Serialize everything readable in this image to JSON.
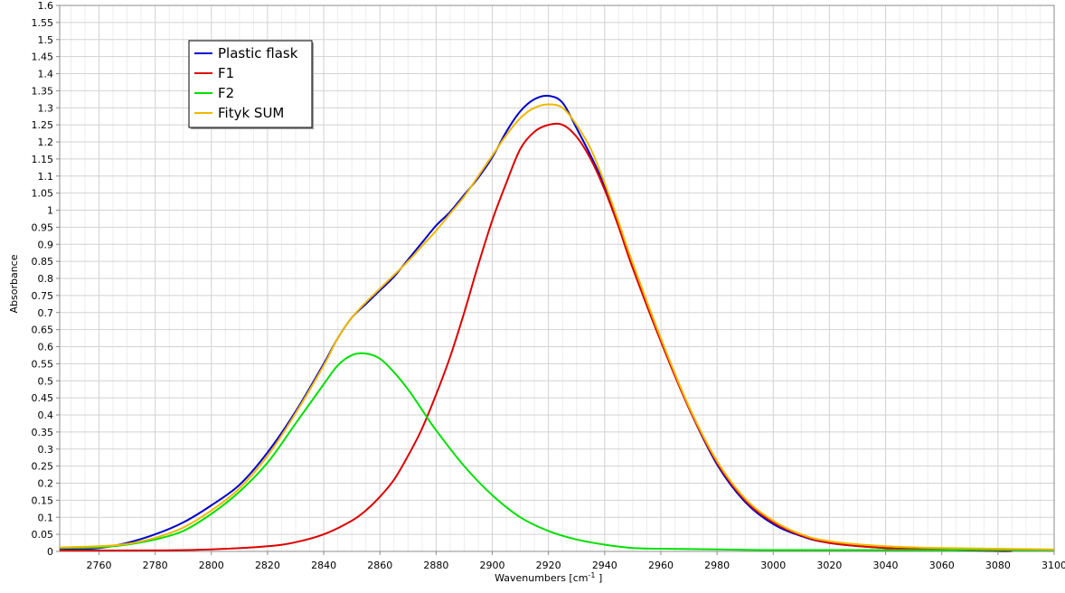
{
  "chart_data": {
    "type": "line",
    "xlabel_prefix": "Wavenumbers [cm",
    "xlabel_sup": "-1",
    "xlabel_suffix": " ]",
    "ylabel": "Absorbance",
    "xlim": [
      2746,
      3100
    ],
    "ylim": [
      0,
      1.6
    ],
    "x_ticks": [
      2760,
      2780,
      2800,
      2820,
      2840,
      2860,
      2880,
      2900,
      2920,
      2940,
      2960,
      2980,
      3000,
      3020,
      3040,
      3060,
      3080,
      3100
    ],
    "y_ticks": [
      "0",
      "0.05",
      "0.1",
      "0.15",
      "0.2",
      "0.25",
      "0.3",
      "0.35",
      "0.4",
      "0.45",
      "0.5",
      "0.55",
      "0.6",
      "0.65",
      "0.7",
      "0.75",
      "0.8",
      "0.85",
      "0.9",
      "0.95",
      "1",
      "1.05",
      "1.1",
      "1.15",
      "1.2",
      "1.25",
      "1.3",
      "1.35",
      "1.4",
      "1.45",
      "1.5",
      "1.55",
      "1.6"
    ],
    "grid": true,
    "legend_position": "top-left",
    "series": [
      {
        "name": "Plastic flask",
        "color": "#0000cc",
        "x": [
          2746,
          2760,
          2770,
          2780,
          2790,
          2800,
          2810,
          2820,
          2830,
          2840,
          2845,
          2850,
          2855,
          2860,
          2865,
          2870,
          2875,
          2880,
          2885,
          2890,
          2895,
          2900,
          2905,
          2910,
          2915,
          2920,
          2925,
          2930,
          2935,
          2940,
          2945,
          2950,
          2960,
          2970,
          2980,
          2990,
          3000,
          3010,
          3020,
          3040,
          3060,
          3080,
          3085
        ],
        "y": [
          0.005,
          0.01,
          0.025,
          0.05,
          0.085,
          0.135,
          0.195,
          0.29,
          0.41,
          0.55,
          0.625,
          0.685,
          0.725,
          0.765,
          0.805,
          0.855,
          0.905,
          0.955,
          0.995,
          1.045,
          1.095,
          1.155,
          1.23,
          1.29,
          1.325,
          1.335,
          1.315,
          1.24,
          1.16,
          1.07,
          0.955,
          0.84,
          0.62,
          0.42,
          0.255,
          0.145,
          0.08,
          0.045,
          0.025,
          0.01,
          0.005,
          0.001,
          0.001
        ]
      },
      {
        "name": "F1",
        "color": "#dd0000",
        "x": [
          2746,
          2780,
          2800,
          2820,
          2830,
          2840,
          2850,
          2855,
          2860,
          2865,
          2870,
          2875,
          2880,
          2885,
          2890,
          2895,
          2900,
          2905,
          2910,
          2915,
          2920,
          2925,
          2930,
          2935,
          2940,
          2945,
          2950,
          2960,
          2970,
          2980,
          2990,
          3000,
          3010,
          3020,
          3040,
          3060,
          3080,
          3085
        ],
        "y": [
          0.003,
          0.003,
          0.006,
          0.015,
          0.027,
          0.05,
          0.09,
          0.12,
          0.16,
          0.21,
          0.28,
          0.36,
          0.46,
          0.57,
          0.7,
          0.84,
          0.97,
          1.08,
          1.18,
          1.23,
          1.25,
          1.25,
          1.215,
          1.15,
          1.06,
          0.95,
          0.83,
          0.615,
          0.42,
          0.26,
          0.15,
          0.085,
          0.047,
          0.025,
          0.01,
          0.005,
          0.002,
          0.002
        ]
      },
      {
        "name": "F2",
        "color": "#00e000",
        "x": [
          2746,
          2760,
          2770,
          2780,
          2790,
          2800,
          2810,
          2820,
          2830,
          2840,
          2845,
          2850,
          2855,
          2860,
          2865,
          2870,
          2875,
          2880,
          2890,
          2900,
          2910,
          2920,
          2930,
          2940,
          2950,
          2960,
          2980,
          3000,
          3040,
          3100
        ],
        "y": [
          0.01,
          0.012,
          0.02,
          0.035,
          0.06,
          0.11,
          0.175,
          0.26,
          0.375,
          0.49,
          0.545,
          0.575,
          0.58,
          0.565,
          0.525,
          0.475,
          0.415,
          0.355,
          0.25,
          0.165,
          0.1,
          0.06,
          0.035,
          0.02,
          0.01,
          0.008,
          0.006,
          0.004,
          0.004,
          0.004
        ]
      },
      {
        "name": "Fityk SUM",
        "color": "#f0b800",
        "x": [
          2746,
          2760,
          2770,
          2780,
          2790,
          2800,
          2810,
          2820,
          2830,
          2840,
          2845,
          2850,
          2855,
          2860,
          2865,
          2870,
          2875,
          2880,
          2885,
          2890,
          2895,
          2900,
          2905,
          2910,
          2915,
          2920,
          2925,
          2930,
          2935,
          2940,
          2945,
          2950,
          2960,
          2970,
          2980,
          2990,
          3000,
          3010,
          3020,
          3040,
          3060,
          3100
        ],
        "y": [
          0.012,
          0.015,
          0.022,
          0.04,
          0.07,
          0.12,
          0.185,
          0.28,
          0.405,
          0.545,
          0.625,
          0.685,
          0.73,
          0.77,
          0.81,
          0.85,
          0.895,
          0.94,
          0.99,
          1.04,
          1.1,
          1.16,
          1.22,
          1.27,
          1.3,
          1.31,
          1.3,
          1.25,
          1.18,
          1.08,
          0.965,
          0.845,
          0.625,
          0.425,
          0.265,
          0.155,
          0.09,
          0.05,
          0.03,
          0.015,
          0.01,
          0.006
        ]
      }
    ]
  }
}
